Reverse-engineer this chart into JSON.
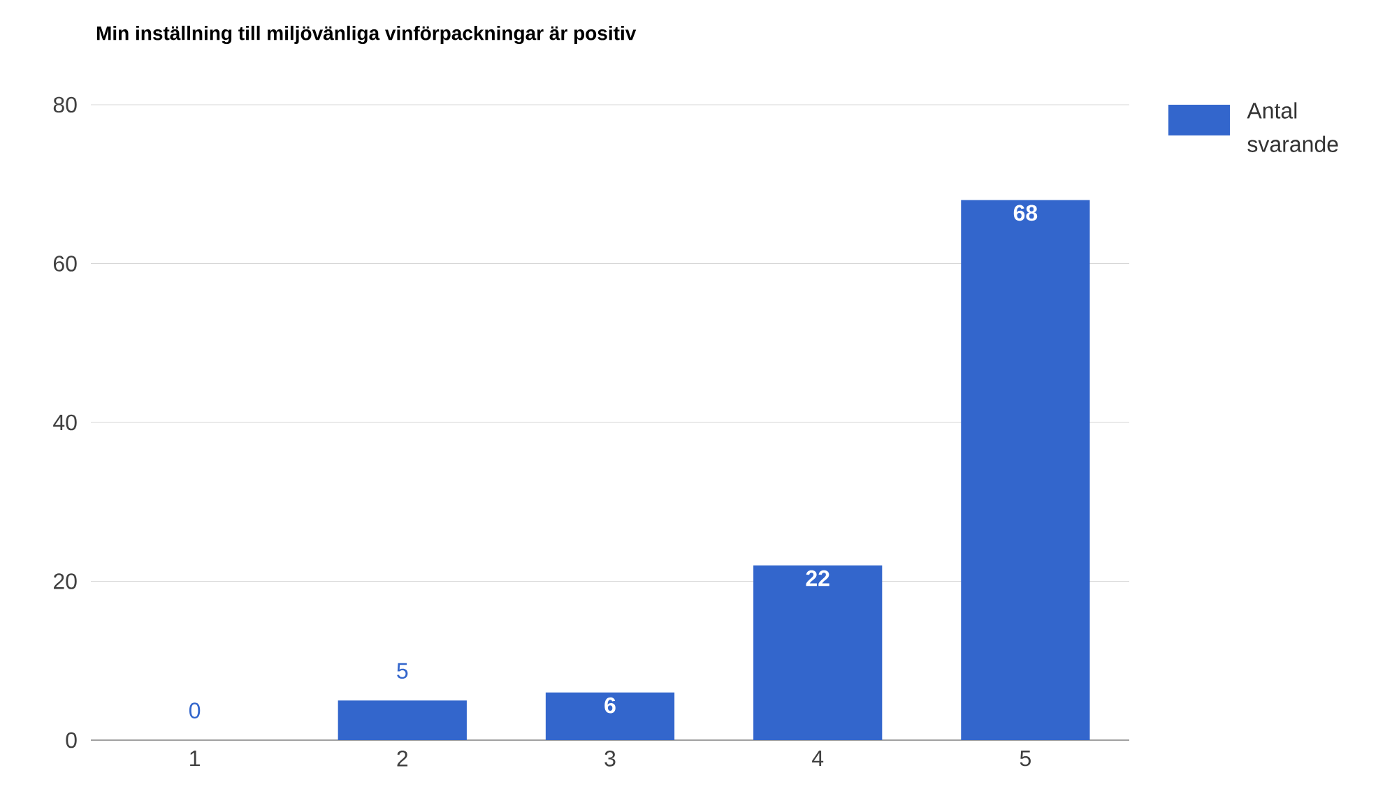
{
  "chart_data": {
    "type": "bar",
    "title": "Min inställning till miljövänliga vinförpackningar är positiv",
    "categories": [
      "1",
      "2",
      "3",
      "4",
      "5"
    ],
    "series": [
      {
        "name": "Antal svarande",
        "color": "#3366cc",
        "values": [
          0,
          5,
          6,
          22,
          68
        ]
      }
    ],
    "ylim": [
      0,
      80
    ],
    "yticks": [
      0,
      20,
      40,
      60,
      80
    ],
    "grid": "y",
    "legend": "top right",
    "data_labels": true
  }
}
